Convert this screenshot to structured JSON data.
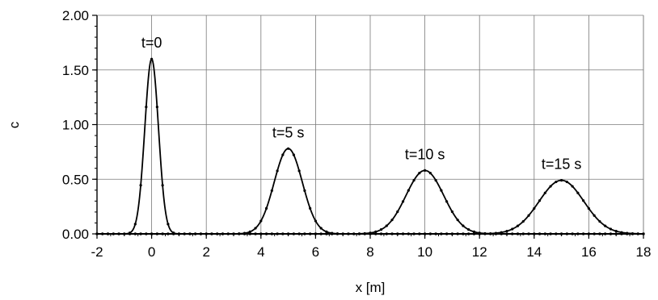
{
  "chart_data": {
    "type": "line",
    "title": "",
    "xlabel": "x [m]",
    "ylabel": "c",
    "xlim": [
      -2,
      18
    ],
    "ylim": [
      0,
      2
    ],
    "x_ticks": [
      -2,
      0,
      2,
      4,
      6,
      8,
      10,
      12,
      14,
      16,
      18
    ],
    "x_tick_labels": [
      "-2",
      "0",
      "2",
      "4",
      "6",
      "8",
      "10",
      "12",
      "14",
      "16",
      "18"
    ],
    "y_ticks": [
      0,
      0.5,
      1.0,
      1.5,
      2.0
    ],
    "y_tick_labels": [
      "0.00",
      "0.50",
      "1.00",
      "1.50",
      "2.00"
    ],
    "grid": true,
    "legend": "none",
    "line_color": "#000000",
    "series": [
      {
        "label": "t=0",
        "peak_x": 0,
        "peak_c": 1.6,
        "width_sigma": 0.25
      },
      {
        "label": "t=5 s",
        "peak_x": 5,
        "peak_c": 0.78,
        "width_sigma": 0.515
      },
      {
        "label": "t=10 s",
        "peak_x": 10,
        "peak_c": 0.58,
        "width_sigma": 0.69
      },
      {
        "label": "t=15 s",
        "peak_x": 15,
        "peak_c": 0.49,
        "width_sigma": 0.82
      }
    ],
    "marker_style": "dots on numerical solution, solid line for analytical solution"
  }
}
